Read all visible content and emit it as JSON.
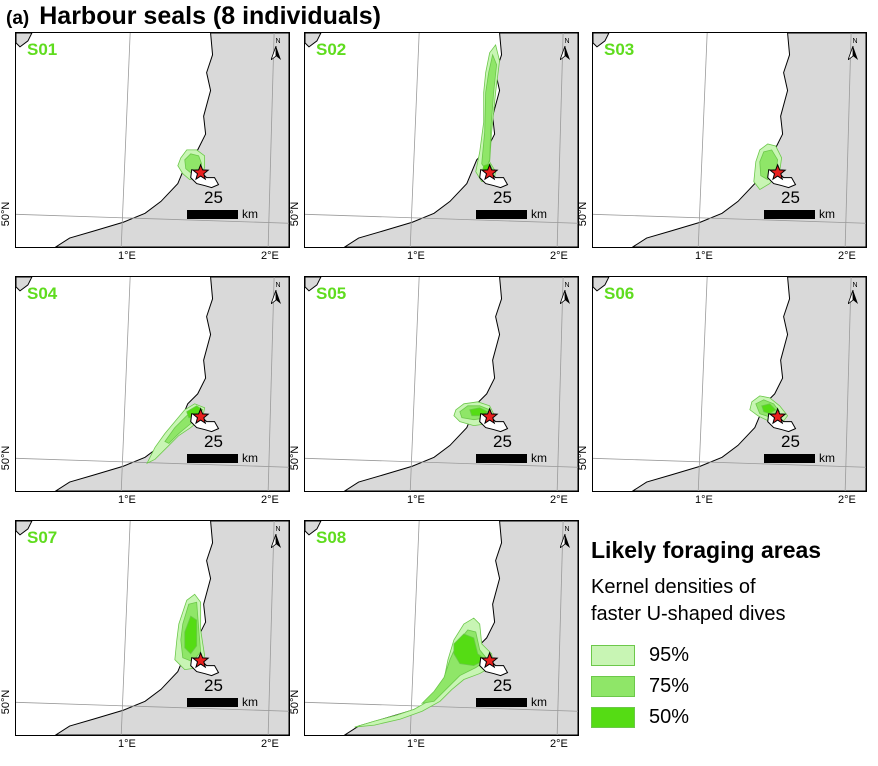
{
  "figure": {
    "label": "(a)",
    "title": "Harbour seals (8 individuals)"
  },
  "map_common": {
    "scale_value": "25",
    "scale_unit": "km",
    "x_ticks": [
      "1°E",
      "2°E"
    ],
    "y_tick": "50°N",
    "north_letter": "N"
  },
  "panels": [
    {
      "id": "S01"
    },
    {
      "id": "S02"
    },
    {
      "id": "S03"
    },
    {
      "id": "S04"
    },
    {
      "id": "S05"
    },
    {
      "id": "S06"
    },
    {
      "id": "S07"
    },
    {
      "id": "S08"
    }
  ],
  "legend": {
    "title": "Likely foraging areas",
    "subtitle_line1": "Kernel densities of",
    "subtitle_line2": "faster U-shaped dives",
    "items": [
      {
        "label": "95%",
        "color": "#c8f5b4"
      },
      {
        "label": "75%",
        "color": "#8fe668"
      },
      {
        "label": "50%",
        "color": "#55dc14"
      }
    ]
  },
  "colors": {
    "land": "#d9d9d9",
    "panel_id": "#5fdc1e",
    "marker": "#e8201e"
  }
}
